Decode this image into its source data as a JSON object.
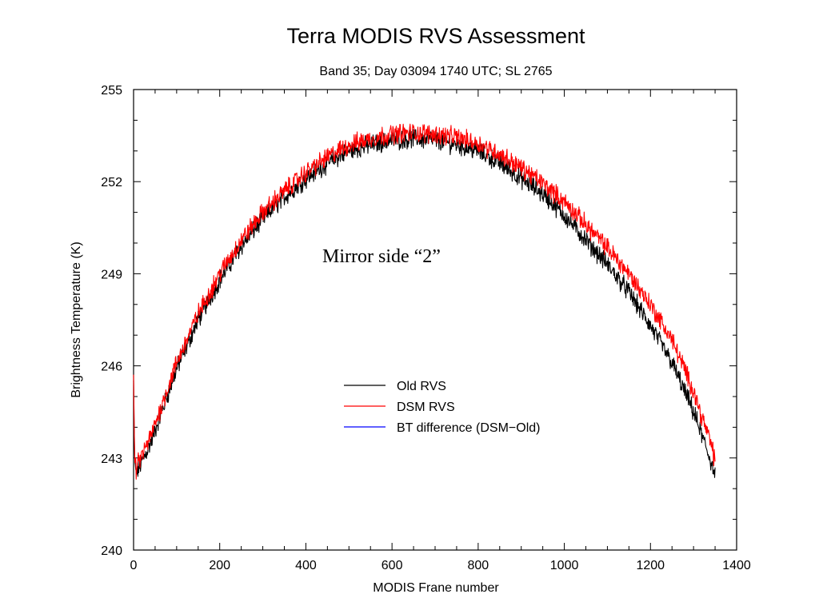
{
  "chart_data": {
    "type": "line",
    "title": "Terra MODIS RVS Assessment",
    "subtitle": "Band 35; Day 03094 1740 UTC; SL 2765",
    "xlabel": "MODIS Frane number",
    "ylabel": "Brightness Temperature (K)",
    "xlim": [
      0,
      1400
    ],
    "ylim": [
      240,
      255
    ],
    "x_ticks": [
      0,
      200,
      400,
      600,
      800,
      1000,
      1200,
      1400
    ],
    "y_ticks": [
      240,
      243,
      246,
      249,
      252,
      255
    ],
    "grid": false,
    "legend_position": "center-right",
    "annotation": "Mirror side “2”",
    "series": [
      {
        "name": "Old RVS",
        "color": "#000000",
        "x": [
          0,
          2,
          4,
          6,
          10,
          20,
          40,
          60,
          100,
          150,
          200,
          250,
          300,
          350,
          400,
          450,
          500,
          550,
          600,
          650,
          700,
          750,
          800,
          850,
          900,
          950,
          1000,
          1050,
          1100,
          1150,
          1200,
          1250,
          1300,
          1320,
          1340,
          1350
        ],
        "values": [
          245.5,
          243.3,
          242.6,
          242.5,
          242.6,
          242.9,
          243.5,
          244.3,
          245.9,
          247.5,
          248.8,
          249.9,
          250.8,
          251.5,
          252.1,
          252.6,
          253.0,
          253.2,
          253.35,
          253.4,
          253.35,
          253.2,
          253.0,
          252.6,
          252.1,
          251.6,
          250.9,
          250.1,
          249.3,
          248.4,
          247.3,
          246.1,
          244.5,
          243.7,
          242.9,
          242.4
        ]
      },
      {
        "name": "DSM RVS",
        "color": "#ff0000",
        "x": [
          0,
          2,
          4,
          6,
          10,
          20,
          40,
          60,
          100,
          150,
          200,
          250,
          300,
          350,
          400,
          450,
          500,
          550,
          600,
          650,
          700,
          750,
          800,
          850,
          900,
          950,
          1000,
          1050,
          1100,
          1150,
          1200,
          1250,
          1300,
          1320,
          1340,
          1350
        ],
        "values": [
          245.6,
          243.4,
          242.7,
          242.6,
          242.8,
          243.1,
          243.7,
          244.5,
          246.1,
          247.7,
          249.0,
          250.1,
          251.0,
          251.7,
          252.3,
          252.8,
          253.2,
          253.4,
          253.55,
          253.6,
          253.55,
          253.45,
          253.25,
          252.9,
          252.45,
          251.95,
          251.35,
          250.6,
          249.85,
          249.0,
          248.0,
          246.85,
          245.2,
          244.3,
          243.5,
          242.9
        ]
      },
      {
        "name": "BT difference (DSM−Old)",
        "color": "#0000ff",
        "x": [],
        "values": []
      }
    ]
  }
}
